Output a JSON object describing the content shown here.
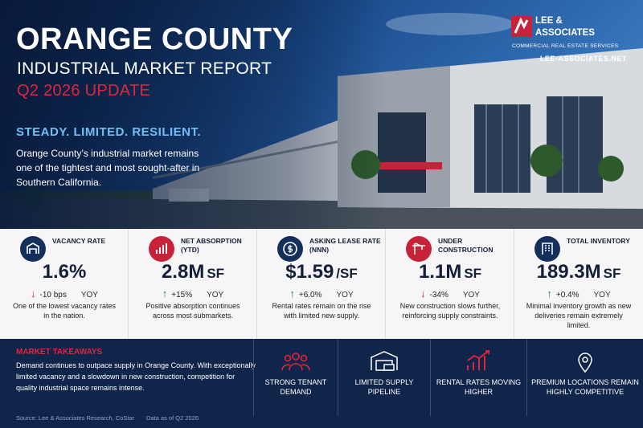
{
  "header": {
    "title": "ORANGE COUNTY",
    "subtitle": "INDUSTRIAL MARKET REPORT",
    "update": "Q2 2026 UPDATE"
  },
  "brand": {
    "name_line1": "LEE &",
    "name_line2": "ASSOCIATES",
    "tagline": "COMMERCIAL REAL ESTATE SERVICES",
    "url": "LEE-ASSOCIATES.NET"
  },
  "intro": {
    "tagline": "STEADY. LIMITED. RESILIENT.",
    "text": "Orange County’s industrial market remains one of the tightest and most sought-after in Southern California."
  },
  "metrics": [
    {
      "label": "VACANCY RATE",
      "value": "1.6%",
      "unit": "",
      "change": "-10 bps",
      "period": "YOY",
      "direction": "down",
      "note": "One of the lowest vacancy rates in the nation."
    },
    {
      "label": "NET ABSORPTION (YTD)",
      "value": "2.8M",
      "unit": "SF",
      "change": "+15%",
      "period": "YOY",
      "direction": "up",
      "note": "Positive absorption continues across most submarkets."
    },
    {
      "label": "ASKING LEASE RATE (NNN)",
      "value": "$1.59",
      "unit": "/SF",
      "change": "+6.0%",
      "period": "YOY",
      "direction": "up",
      "note": "Rental rates remain on the rise with limited new supply."
    },
    {
      "label": "UNDER CONSTRUCTION",
      "value": "1.1M",
      "unit": "SF",
      "change": "-34%",
      "period": "YOY",
      "direction": "down",
      "note": "New construction slows further, reinforcing supply constraints."
    },
    {
      "label": "TOTAL INVENTORY",
      "value": "189.3M",
      "unit": "SF",
      "change": "+0.4%",
      "period": "YOY",
      "direction": "up",
      "note": "Minimal inventory growth as new deliveries remain extremely limited."
    }
  ],
  "takeaways": {
    "heading": "MARKET TAKEAWAYS",
    "text": "Demand continues to outpace supply in Orange County. With exceptionally limited vacancy and a slowdown in new construction, competition for quality industrial space remains intense.",
    "items": [
      "STRONG TENANT DEMAND",
      "LIMITED SUPPLY PIPELINE",
      "RENTAL RATES MOVING HIGHER",
      "PREMIUM LOCATIONS REMAIN HIGHLY COMPETITIVE"
    ]
  },
  "footer": {
    "source": "Source: Lee & Associates Research, CoStar",
    "as_of": "Data as of Q2 2026"
  }
}
